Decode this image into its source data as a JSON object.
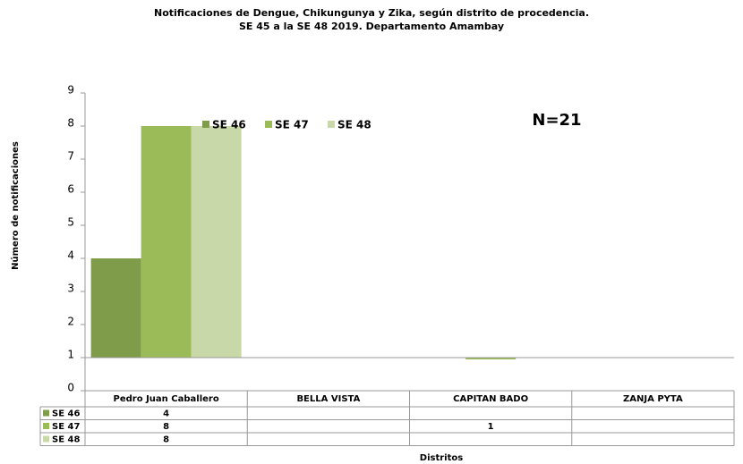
{
  "chart_data": {
    "type": "bar",
    "title": "Notificaciones de Dengue, Chikungunya y Zika, según distrito de procedencia.",
    "subtitle": "SE 45 a la SE 48 2019. Departamento Amambay",
    "x_label": "Distritos",
    "y_label": "Número de notificaciones",
    "annotation": "N=21",
    "categories": [
      "Pedro Juan Caballero",
      "BELLA VISTA",
      "CAPITAN BADO",
      "ZANJA PYTA"
    ],
    "series": [
      {
        "name": "SE 46",
        "color": "#7f9c4a",
        "values": [
          4,
          null,
          null,
          null
        ]
      },
      {
        "name": "SE 47",
        "color": "#9bbb59",
        "values": [
          8,
          null,
          1,
          null
        ]
      },
      {
        "name": "SE 48",
        "color": "#c9d8a8",
        "values": [
          8,
          null,
          null,
          null
        ]
      }
    ],
    "ylim": [
      0,
      9
    ],
    "yticks": [
      0,
      1,
      2,
      3,
      4,
      5,
      6,
      7,
      8,
      9
    ],
    "x_axis_crosses_at": 1,
    "grid": false,
    "data_table": true
  }
}
